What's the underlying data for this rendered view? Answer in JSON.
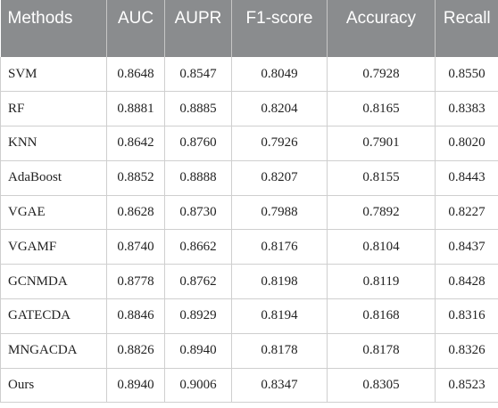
{
  "table": {
    "headers": [
      "Methods",
      "AUC",
      "AUPR",
      "F1-score",
      "Accuracy",
      "Recall"
    ],
    "rows": [
      [
        "SVM",
        "0.8648",
        "0.8547",
        "0.8049",
        "0.7928",
        "0.8550"
      ],
      [
        "RF",
        "0.8881",
        "0.8885",
        "0.8204",
        "0.8165",
        "0.8383"
      ],
      [
        "KNN",
        "0.8642",
        "0.8760",
        "0.7926",
        "0.7901",
        "0.8020"
      ],
      [
        "AdaBoost",
        "0.8852",
        "0.8888",
        "0.8207",
        "0.8155",
        "0.8443"
      ],
      [
        "VGAE",
        "0.8628",
        "0.8730",
        "0.7988",
        "0.7892",
        "0.8227"
      ],
      [
        "VGAMF",
        "0.8740",
        "0.8662",
        "0.8176",
        "0.8104",
        "0.8437"
      ],
      [
        "GCNMDA",
        "0.8778",
        "0.8762",
        "0.8198",
        "0.8119",
        "0.8428"
      ],
      [
        "GATECDA",
        "0.8846",
        "0.8929",
        "0.8194",
        "0.8168",
        "0.8316"
      ],
      [
        "MNGACDA",
        "0.8826",
        "0.8940",
        "0.8178",
        "0.8178",
        "0.8326"
      ],
      [
        "Ours",
        "0.8940",
        "0.9006",
        "0.8347",
        "0.8305",
        "0.8523"
      ]
    ]
  },
  "colors": {
    "header_bg": "#8a8c8e",
    "header_text": "#ffffff",
    "grid": "#cfcfcf"
  }
}
